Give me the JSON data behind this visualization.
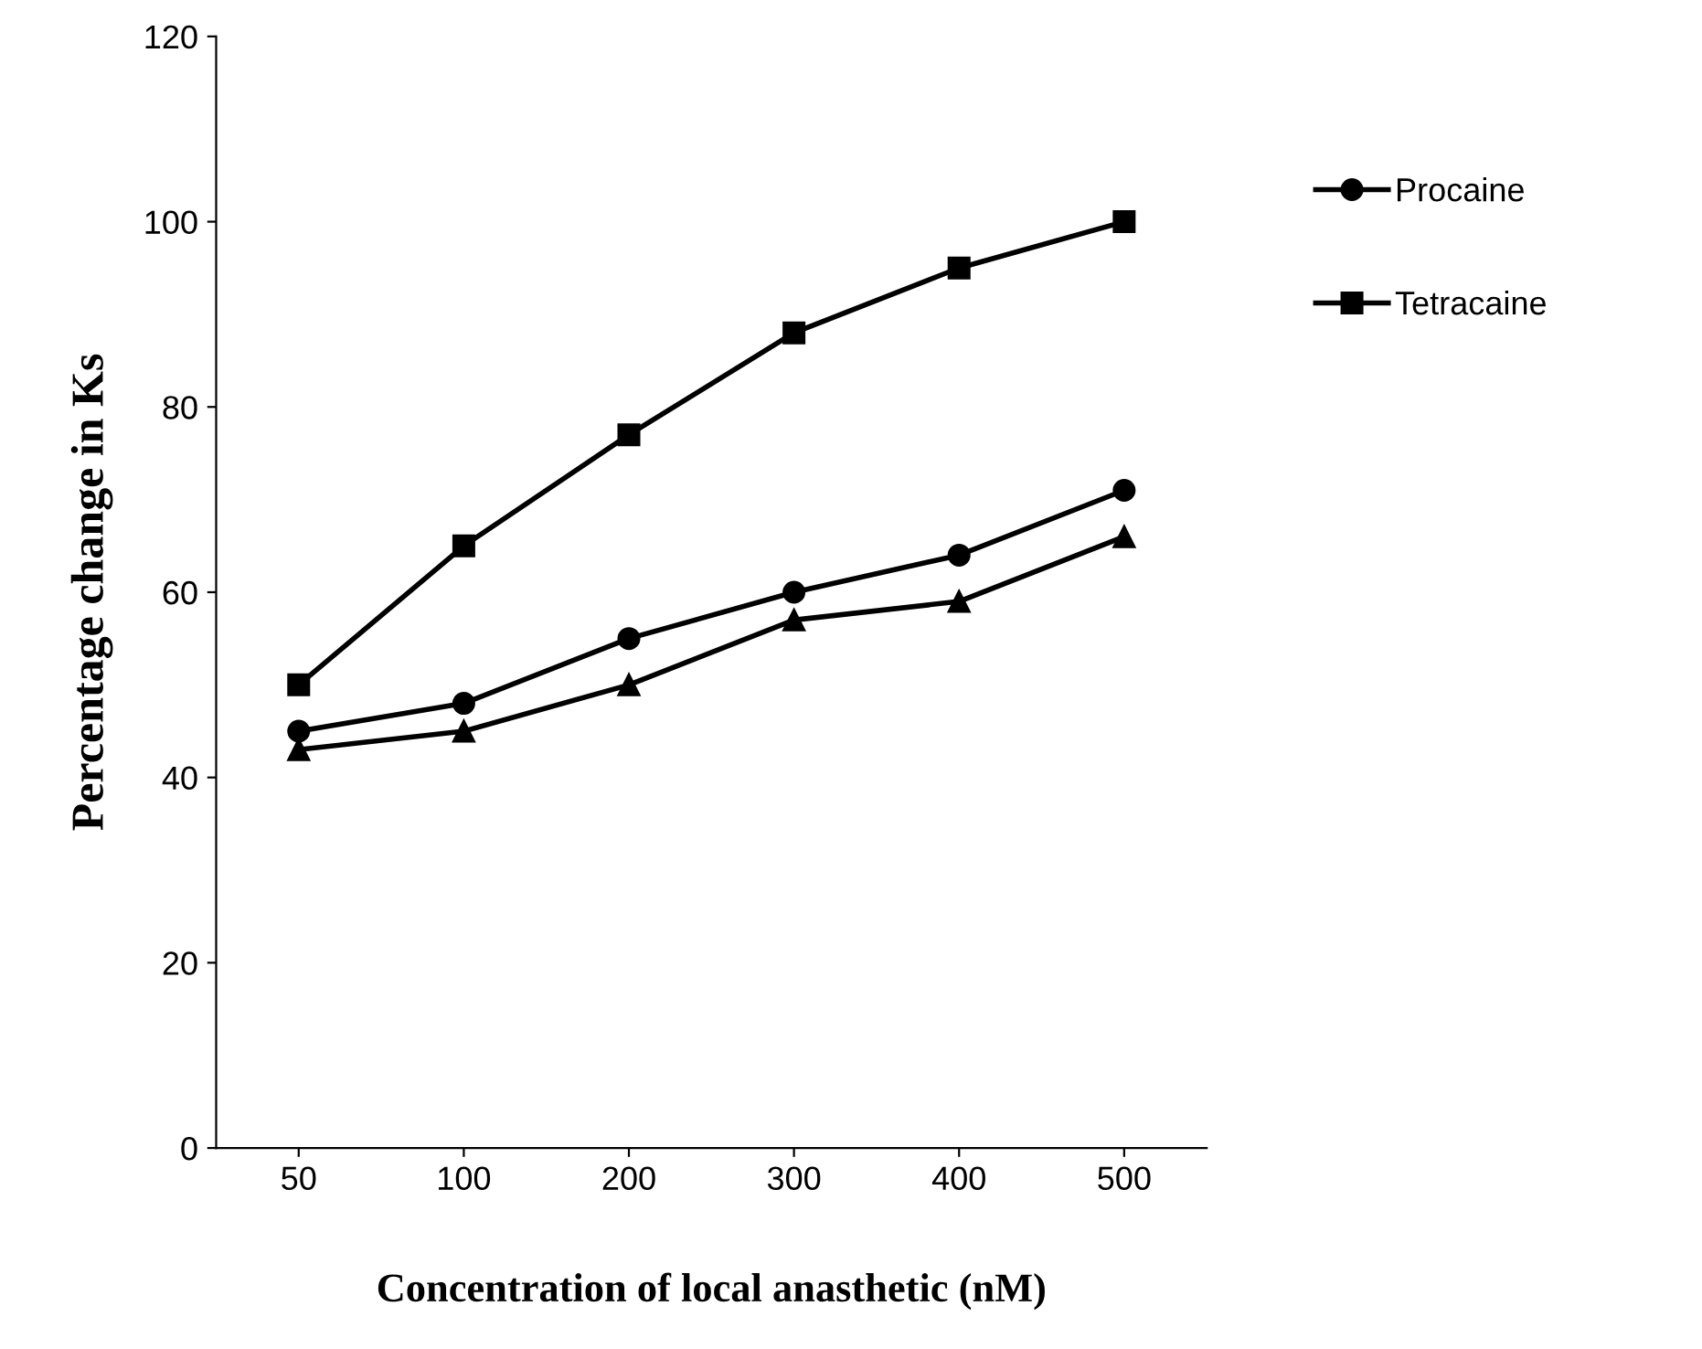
{
  "chart_data": {
    "type": "line",
    "xlabel": "Concentration of local anasthetic (nM)",
    "ylabel": "Percentage change in Ks",
    "categories": [
      "50",
      "100",
      "200",
      "300",
      "400",
      "500"
    ],
    "series": [
      {
        "name": "Procaine",
        "color": "#000000",
        "marker": "circle",
        "values": [
          45,
          48,
          55,
          60,
          64,
          71
        ]
      },
      {
        "name": "Tetracaine",
        "color": "#000000",
        "marker": "square",
        "values": [
          50,
          65,
          77,
          88,
          95,
          100
        ]
      },
      {
        "color": "#000000",
        "marker": "triangle",
        "values": [
          43,
          45,
          50,
          57,
          59,
          66
        ]
      }
    ],
    "ylim": [
      0,
      120
    ],
    "yticks": [
      0,
      20,
      40,
      60,
      80,
      100,
      120
    ],
    "grid": false,
    "legend": "right",
    "line_style": "solid"
  }
}
